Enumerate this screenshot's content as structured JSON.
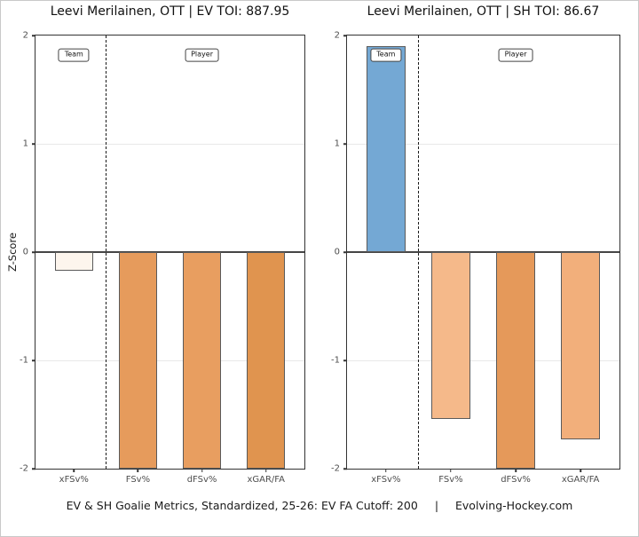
{
  "y_axis": {
    "label": "Z-Score",
    "min": -2,
    "max": 2
  },
  "sections": {
    "team": "Team",
    "player": "Player"
  },
  "caption": {
    "text": "EV & SH Goalie Metrics, Standardized, 25-26: EV FA Cutoff: 200",
    "separator": "|",
    "site": "Evolving-Hockey.com"
  },
  "style": {
    "zero_line": "#454545",
    "gridline": "#e8e8e8",
    "panel_border": "#333333",
    "bar_border": "#5a5a5a",
    "separator_line": "#1a1a1a",
    "label_box_border": "#444444",
    "label_box_bg": "#ffffff",
    "tick_text": "#4d4d4d",
    "title_text": "#111111"
  },
  "chart_data": [
    {
      "type": "bar",
      "title": "Leevi Merilainen, OTT | EV TOI: 887.95",
      "categories": [
        "xFSv%",
        "FSv%",
        "dFSv%",
        "xGAR/FA"
      ],
      "values": [
        -0.17,
        -2.0,
        -2.0,
        -2.0
      ],
      "clipped_at_axis": [
        false,
        true,
        true,
        true
      ],
      "bar_colors": [
        "#fdf5ed",
        "#e69b5c",
        "#e89e60",
        "#e0944f"
      ],
      "ylabel": "Z-Score",
      "ylim": [
        -2,
        2
      ],
      "yticks": [
        2,
        1,
        0,
        -1,
        -2
      ],
      "grid": true,
      "legend": "none",
      "separator_x": 1.5,
      "sections": [
        "Team",
        "Player"
      ]
    },
    {
      "type": "bar",
      "title": "Leevi Merilainen, OTT | SH TOI: 86.67",
      "categories": [
        "xFSv%",
        "FSv%",
        "dFSv%",
        "xGAR/FA"
      ],
      "values": [
        1.9,
        -1.54,
        -2.0,
        -1.73
      ],
      "clipped_at_axis": [
        false,
        false,
        true,
        false
      ],
      "bar_colors": [
        "#74a8d4",
        "#f5b98a",
        "#e5995a",
        "#f2af7b"
      ],
      "ylabel": "",
      "ylim": [
        -2,
        2
      ],
      "yticks": [
        2,
        1,
        0,
        -1,
        -2
      ],
      "grid": true,
      "legend": "none",
      "separator_x": 1.5,
      "sections": [
        "Team",
        "Player"
      ]
    }
  ]
}
